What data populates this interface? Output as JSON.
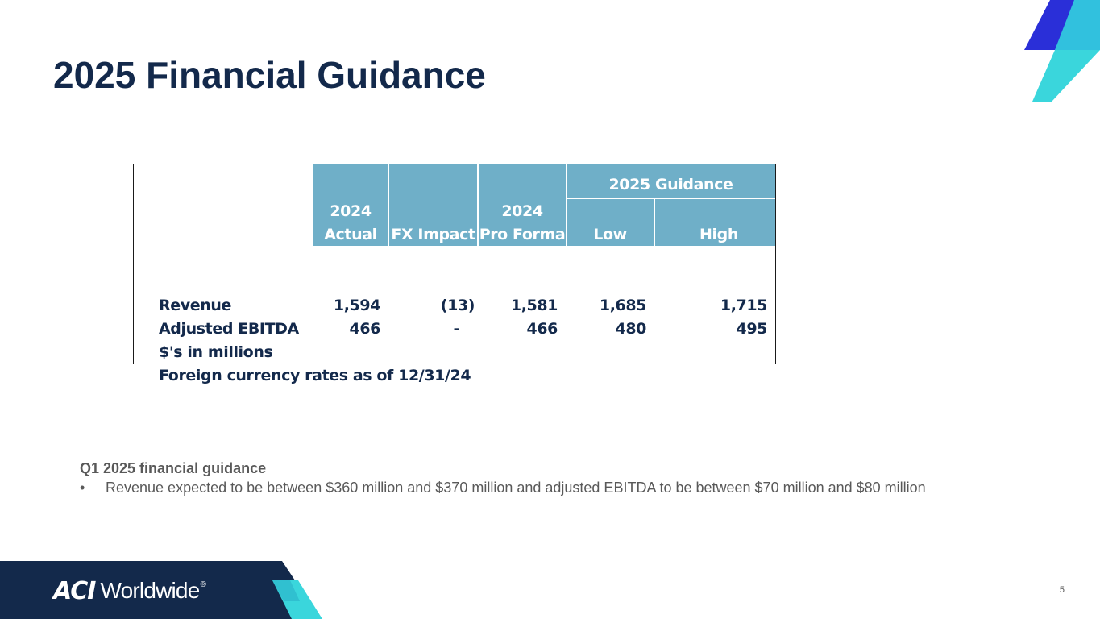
{
  "slide": {
    "title": "2025 Financial Guidance",
    "page_number": "5"
  },
  "table": {
    "group_header": "2025 Guidance",
    "columns": [
      {
        "line1": "2024",
        "line2": "Actual"
      },
      {
        "line1": "",
        "line2": "FX Impact"
      },
      {
        "line1": "2024",
        "line2": "Pro Forma"
      },
      {
        "line1": "",
        "line2": "Low"
      },
      {
        "line1": "",
        "line2": "High"
      }
    ],
    "rows": [
      {
        "label": "Revenue",
        "values": [
          "1,594",
          "(13)",
          "1,581",
          "1,685",
          "1,715"
        ]
      },
      {
        "label": "Adjusted EBITDA",
        "values": [
          "466",
          "-",
          "466",
          "480",
          "495"
        ]
      }
    ],
    "note1": "$'s in millions",
    "note2": "Foreign currency rates as of 12/31/24"
  },
  "q1": {
    "title": "Q1 2025 financial guidance",
    "bullet_symbol": "•",
    "bullet_text": "Revenue expected to be between $360 million and $370 million and adjusted EBITDA to be between $70 million and $80 million"
  },
  "footer": {
    "logo_mark": "ACI",
    "logo_word": "Worldwide",
    "logo_reg": "®"
  },
  "colors": {
    "title": "#13294b",
    "header_fill": "#6fafc8",
    "deco_blue": "#2a2fd8",
    "deco_cyan": "#3ad6dc",
    "footer_navy": "#13294b"
  }
}
